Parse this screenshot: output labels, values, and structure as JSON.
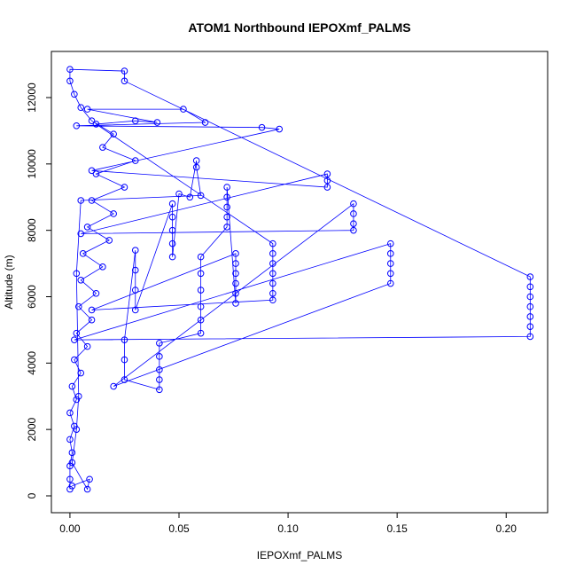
{
  "chart_data": {
    "type": "scatter",
    "title": "ATOM1 Northbound IEPOXmf_PALMS",
    "x_label": "IEPOXmf_PALMS",
    "y_label": "Altitude (m)",
    "xlim": [
      -0.0085,
      0.219
    ],
    "ylim": [
      -508,
      13390
    ],
    "xticks": [
      {
        "value": 0,
        "label": "0.00"
      },
      {
        "value": 0.05,
        "label": "0.05"
      },
      {
        "value": 0.1,
        "label": "0.10"
      },
      {
        "value": 0.15,
        "label": "0.15"
      },
      {
        "value": 0.2,
        "label": "0.20"
      }
    ],
    "yticks": [
      0,
      2000,
      4000,
      6000,
      8000,
      10000,
      12000
    ],
    "series": [
      {
        "color": "#0000ff",
        "x": [
          0,
          0,
          0,
          0.001,
          0,
          0.002,
          0,
          0.003,
          0.001,
          0.005,
          0.002,
          0.008,
          0.003,
          0.01,
          0.004,
          0.012,
          0.005,
          0.015,
          0.006,
          0.018,
          0.008,
          0.02,
          0.01,
          0.025,
          0.012,
          0.03,
          0.015,
          0.02,
          0.01,
          0.005,
          0.002,
          0,
          0,
          0.025,
          0.025,
          0.211,
          0.211,
          0.211,
          0.211,
          0.211,
          0.211,
          0.211,
          0.002,
          0.147,
          0.147,
          0.147,
          0.147,
          0.147,
          0.02,
          0.13,
          0.13,
          0.13,
          0.13,
          0.005,
          0.118,
          0.118,
          0.118,
          0.01,
          0.096,
          0.088,
          0.003,
          0.062,
          0.052,
          0.008,
          0.04,
          0.03,
          0.012,
          0.093,
          0.093,
          0.093,
          0.093,
          0.093,
          0.093,
          0.093,
          0.01,
          0.076,
          0.076,
          0.076,
          0.076,
          0.076,
          0.076,
          0.072,
          0.072,
          0.072,
          0.072,
          0.072,
          0.06,
          0.06,
          0.06,
          0.06,
          0.06,
          0.06,
          0.041,
          0.041,
          0.041,
          0.041,
          0.041,
          0.025,
          0.025,
          0.025,
          0.03,
          0.03,
          0.03,
          0.03,
          0.047,
          0.047,
          0.047,
          0.047,
          0.047,
          0.05,
          0.055,
          0.058,
          0.058,
          0.06,
          0.005,
          0.003,
          0.004,
          0.003,
          0.001,
          0.008,
          0.009,
          0.001
        ],
        "values": [
          200,
          500,
          900,
          1300,
          1700,
          2100,
          2500,
          2900,
          3300,
          3700,
          4100,
          4500,
          4900,
          5300,
          5700,
          6100,
          6500,
          6900,
          7300,
          7700,
          8100,
          8500,
          8900,
          9300,
          9700,
          10100,
          10500,
          10900,
          11300,
          11700,
          12100,
          12500,
          12850,
          12800,
          12500,
          6600,
          6300,
          6000,
          5700,
          5400,
          5100,
          4800,
          4700,
          7600,
          7300,
          7000,
          6700,
          6400,
          3300,
          8800,
          8500,
          8200,
          8000,
          7900,
          9700,
          9500,
          9300,
          9800,
          11050,
          11100,
          11150,
          11250,
          11650,
          11650,
          11250,
          11300,
          11200,
          7600,
          7300,
          7000,
          6700,
          6400,
          6100,
          5900,
          5600,
          7300,
          7000,
          6700,
          6400,
          6100,
          5800,
          9300,
          9000,
          8700,
          8400,
          8100,
          7200,
          6700,
          6200,
          5700,
          5300,
          4900,
          4600,
          4200,
          3800,
          3500,
          3200,
          3500,
          4100,
          4700,
          7400,
          6800,
          6200,
          5600,
          8800,
          8400,
          8000,
          7600,
          7200,
          9100,
          9000,
          10100,
          9900,
          9050,
          8900,
          6700,
          3000,
          2000,
          1000,
          200,
          500,
          300
        ]
      }
    ]
  }
}
